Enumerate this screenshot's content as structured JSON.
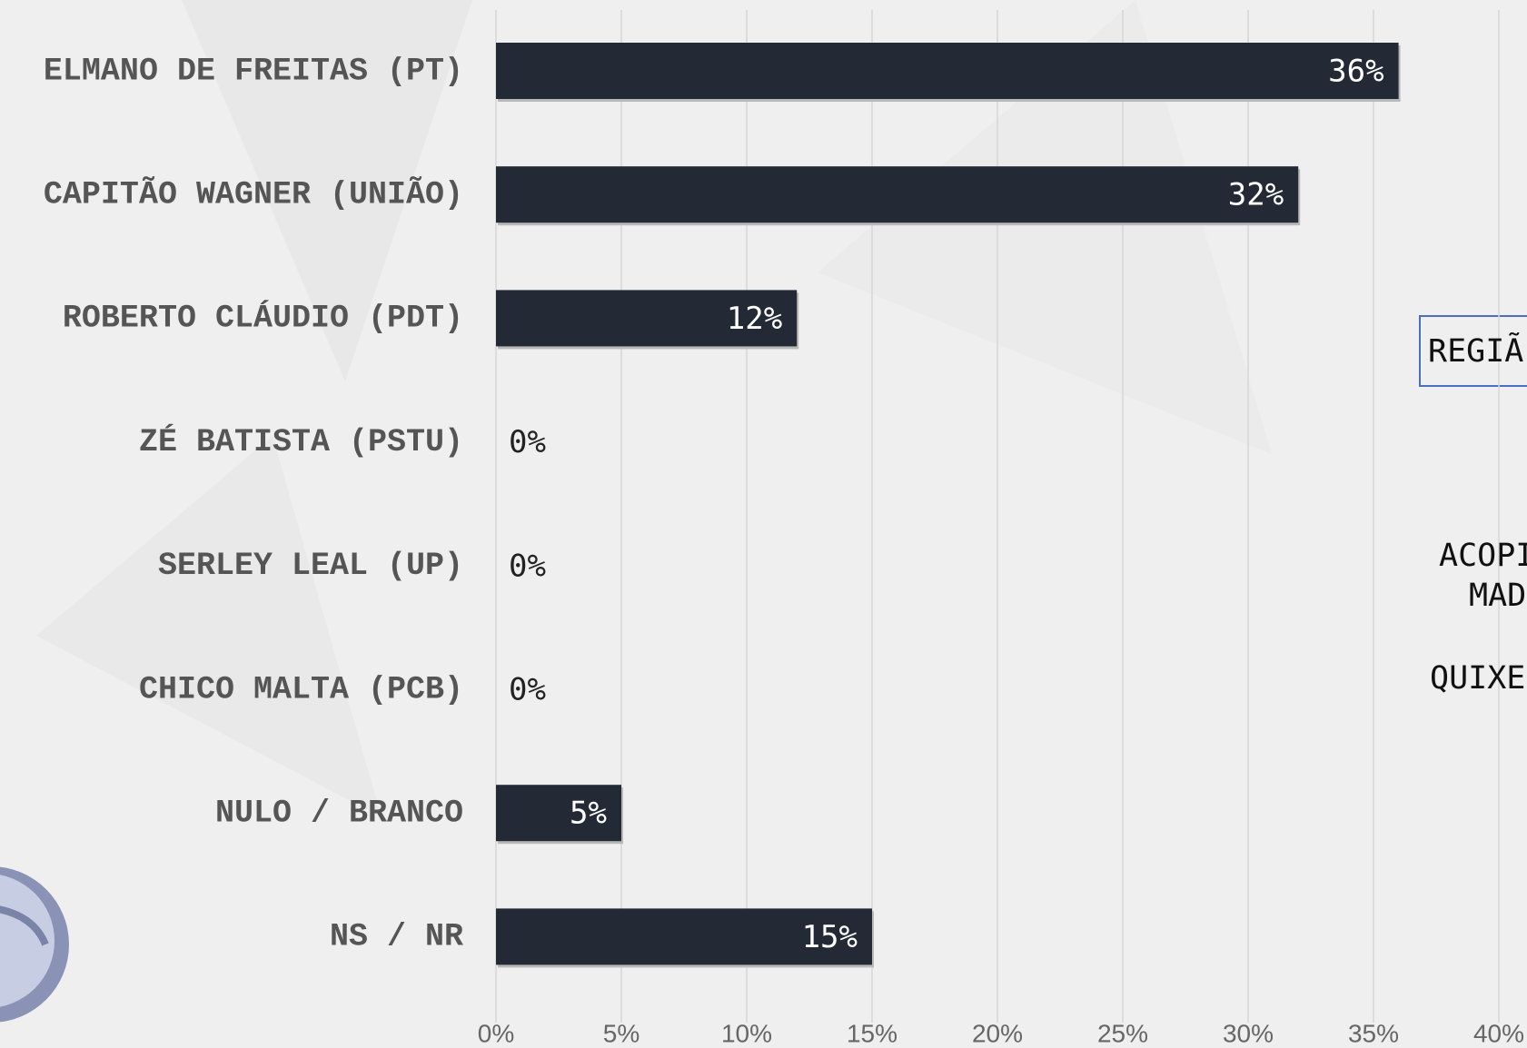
{
  "chart_data": {
    "type": "bar",
    "orientation": "horizontal",
    "categories": [
      "ELMANO DE FREITAS (PT)",
      "CAPITÃO WAGNER (UNIÃO)",
      "ROBERTO CLÁUDIO (PDT)",
      "ZÉ BATISTA (PSTU)",
      "SERLEY LEAL (UP)",
      "CHICO MALTA (PCB)",
      "NULO / BRANCO",
      "NS / NR"
    ],
    "values": [
      36,
      32,
      12,
      0,
      0,
      0,
      5,
      15
    ],
    "value_labels": [
      "36%",
      "32%",
      "12%",
      "0%",
      "0%",
      "0%",
      "5%",
      "15%"
    ],
    "color": "#232a35",
    "xlim": [
      0,
      40
    ],
    "xticks": [
      {
        "value": 0,
        "label": "0%"
      },
      {
        "value": 5,
        "label": "5%"
      },
      {
        "value": 10,
        "label": "10%"
      },
      {
        "value": 15,
        "label": "15%"
      },
      {
        "value": 20,
        "label": "20%"
      },
      {
        "value": 25,
        "label": "25%"
      },
      {
        "value": 30,
        "label": "30%"
      },
      {
        "value": 35,
        "label": "35%"
      },
      {
        "value": 40,
        "label": "40%"
      }
    ],
    "grid": true,
    "annotations": [
      "REGIÃ",
      "ACOPI",
      "MAD",
      "QUIXE"
    ]
  }
}
